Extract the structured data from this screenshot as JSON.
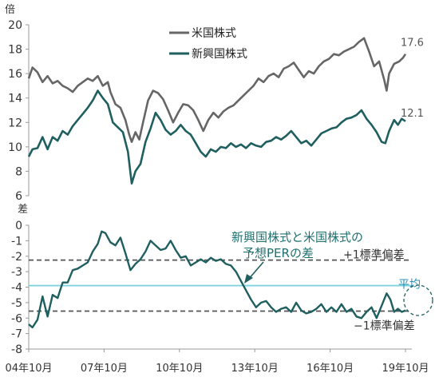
{
  "chart_data": [
    {
      "type": "line",
      "unit_label": "倍",
      "ylim": [
        6,
        20
      ],
      "yticks": [
        6,
        8,
        10,
        12,
        14,
        16,
        18,
        20
      ],
      "grid": false,
      "legend_position": "top-center",
      "series": [
        {
          "name": "米国株式",
          "color": "#666666",
          "end_label": "17.6",
          "points": [
            [
              2004.75,
              15.6
            ],
            [
              2004.9,
              16.5
            ],
            [
              2005.1,
              16.1
            ],
            [
              2005.3,
              15.3
            ],
            [
              2005.5,
              15.8
            ],
            [
              2005.7,
              15.2
            ],
            [
              2005.9,
              15.4
            ],
            [
              2006.1,
              15.0
            ],
            [
              2006.3,
              14.8
            ],
            [
              2006.5,
              14.5
            ],
            [
              2006.7,
              15.0
            ],
            [
              2006.9,
              15.3
            ],
            [
              2007.1,
              15.6
            ],
            [
              2007.3,
              15.4
            ],
            [
              2007.5,
              15.8
            ],
            [
              2007.7,
              15.0
            ],
            [
              2007.9,
              15.3
            ],
            [
              2008.0,
              14.5
            ],
            [
              2008.2,
              13.5
            ],
            [
              2008.4,
              13.2
            ],
            [
              2008.6,
              12.2
            ],
            [
              2008.75,
              11.0
            ],
            [
              2008.85,
              10.4
            ],
            [
              2009.0,
              11.2
            ],
            [
              2009.15,
              10.6
            ],
            [
              2009.3,
              12.0
            ],
            [
              2009.5,
              13.8
            ],
            [
              2009.7,
              14.6
            ],
            [
              2009.9,
              14.4
            ],
            [
              2010.1,
              13.9
            ],
            [
              2010.3,
              13.0
            ],
            [
              2010.5,
              12.0
            ],
            [
              2010.7,
              12.8
            ],
            [
              2010.9,
              13.5
            ],
            [
              2011.1,
              13.4
            ],
            [
              2011.3,
              13.0
            ],
            [
              2011.5,
              12.2
            ],
            [
              2011.7,
              11.3
            ],
            [
              2011.9,
              12.2
            ],
            [
              2012.1,
              12.8
            ],
            [
              2012.3,
              12.4
            ],
            [
              2012.5,
              12.9
            ],
            [
              2012.7,
              13.2
            ],
            [
              2012.9,
              13.4
            ],
            [
              2013.1,
              13.8
            ],
            [
              2013.3,
              14.2
            ],
            [
              2013.5,
              14.6
            ],
            [
              2013.7,
              15.0
            ],
            [
              2013.9,
              15.6
            ],
            [
              2014.1,
              15.3
            ],
            [
              2014.3,
              15.8
            ],
            [
              2014.5,
              16.0
            ],
            [
              2014.7,
              15.7
            ],
            [
              2014.9,
              16.4
            ],
            [
              2015.1,
              16.6
            ],
            [
              2015.3,
              16.9
            ],
            [
              2015.5,
              16.3
            ],
            [
              2015.7,
              15.7
            ],
            [
              2015.9,
              16.2
            ],
            [
              2016.1,
              16.0
            ],
            [
              2016.3,
              16.6
            ],
            [
              2016.5,
              17.0
            ],
            [
              2016.7,
              17.2
            ],
            [
              2016.9,
              17.6
            ],
            [
              2017.1,
              17.5
            ],
            [
              2017.3,
              17.8
            ],
            [
              2017.5,
              18.0
            ],
            [
              2017.7,
              18.2
            ],
            [
              2017.9,
              18.6
            ],
            [
              2018.1,
              18.9
            ],
            [
              2018.3,
              17.8
            ],
            [
              2018.5,
              16.6
            ],
            [
              2018.7,
              17.0
            ],
            [
              2018.9,
              15.5
            ],
            [
              2019.0,
              14.6
            ],
            [
              2019.1,
              16.0
            ],
            [
              2019.3,
              16.8
            ],
            [
              2019.5,
              17.0
            ],
            [
              2019.65,
              17.3
            ],
            [
              2019.75,
              17.6
            ]
          ]
        },
        {
          "name": "新興国株式",
          "color": "#1f5f5f",
          "end_label": "12.1",
          "points": [
            [
              2004.75,
              9.2
            ],
            [
              2004.9,
              9.8
            ],
            [
              2005.1,
              9.9
            ],
            [
              2005.3,
              10.8
            ],
            [
              2005.5,
              9.8
            ],
            [
              2005.7,
              10.8
            ],
            [
              2005.9,
              10.5
            ],
            [
              2006.1,
              11.3
            ],
            [
              2006.3,
              11.0
            ],
            [
              2006.5,
              11.7
            ],
            [
              2006.7,
              12.2
            ],
            [
              2006.9,
              12.7
            ],
            [
              2007.1,
              13.2
            ],
            [
              2007.3,
              13.8
            ],
            [
              2007.5,
              14.6
            ],
            [
              2007.7,
              14.0
            ],
            [
              2007.9,
              13.5
            ],
            [
              2008.1,
              12.0
            ],
            [
              2008.3,
              11.6
            ],
            [
              2008.5,
              11.2
            ],
            [
              2008.7,
              9.6
            ],
            [
              2008.85,
              7.0
            ],
            [
              2009.0,
              8.0
            ],
            [
              2009.2,
              8.6
            ],
            [
              2009.4,
              10.4
            ],
            [
              2009.6,
              11.5
            ],
            [
              2009.8,
              12.8
            ],
            [
              2010.0,
              12.2
            ],
            [
              2010.2,
              11.4
            ],
            [
              2010.4,
              11.0
            ],
            [
              2010.6,
              11.3
            ],
            [
              2010.8,
              11.8
            ],
            [
              2011.0,
              11.3
            ],
            [
              2011.2,
              11.0
            ],
            [
              2011.4,
              10.3
            ],
            [
              2011.6,
              9.6
            ],
            [
              2011.8,
              9.2
            ],
            [
              2012.0,
              9.8
            ],
            [
              2012.2,
              9.6
            ],
            [
              2012.4,
              10.0
            ],
            [
              2012.6,
              9.9
            ],
            [
              2012.8,
              10.3
            ],
            [
              2013.0,
              10.0
            ],
            [
              2013.2,
              10.2
            ],
            [
              2013.4,
              9.9
            ],
            [
              2013.6,
              10.3
            ],
            [
              2013.8,
              10.1
            ],
            [
              2014.0,
              10.0
            ],
            [
              2014.2,
              10.4
            ],
            [
              2014.4,
              10.5
            ],
            [
              2014.6,
              10.8
            ],
            [
              2014.8,
              10.6
            ],
            [
              2015.0,
              10.9
            ],
            [
              2015.2,
              11.3
            ],
            [
              2015.4,
              10.8
            ],
            [
              2015.6,
              10.3
            ],
            [
              2015.8,
              10.5
            ],
            [
              2016.0,
              10.1
            ],
            [
              2016.2,
              10.6
            ],
            [
              2016.4,
              11.1
            ],
            [
              2016.6,
              11.3
            ],
            [
              2016.8,
              11.5
            ],
            [
              2017.0,
              11.6
            ],
            [
              2017.2,
              12.0
            ],
            [
              2017.4,
              12.3
            ],
            [
              2017.6,
              12.4
            ],
            [
              2017.8,
              12.6
            ],
            [
              2018.0,
              13.0
            ],
            [
              2018.2,
              12.3
            ],
            [
              2018.4,
              11.8
            ],
            [
              2018.6,
              11.2
            ],
            [
              2018.8,
              10.4
            ],
            [
              2018.95,
              10.3
            ],
            [
              2019.1,
              11.3
            ],
            [
              2019.3,
              12.2
            ],
            [
              2019.45,
              11.8
            ],
            [
              2019.6,
              12.3
            ],
            [
              2019.75,
              12.1
            ]
          ]
        }
      ]
    },
    {
      "type": "line",
      "unit_label": "差",
      "ylim": [
        -8,
        0
      ],
      "yticks": [
        0,
        -1,
        -2,
        -3,
        -4,
        -5,
        -6,
        -7,
        -8
      ],
      "grid": false,
      "xlim": [
        2004.75,
        2019.75
      ],
      "xticks": [
        {
          "x": 2004.75,
          "label": "04年10月"
        },
        {
          "x": 2007.75,
          "label": "07年10月"
        },
        {
          "x": 2010.75,
          "label": "10年10月"
        },
        {
          "x": 2013.75,
          "label": "13年10月"
        },
        {
          "x": 2016.75,
          "label": "16年10月"
        },
        {
          "x": 2019.75,
          "label": "19年10月"
        }
      ],
      "series": [
        {
          "name": "新興国株式と米国株式の予想PERの差",
          "color": "#1f5f5f",
          "points": [
            [
              2004.75,
              -6.4
            ],
            [
              2004.9,
              -6.6
            ],
            [
              2005.1,
              -6.1
            ],
            [
              2005.3,
              -4.6
            ],
            [
              2005.5,
              -5.9
            ],
            [
              2005.7,
              -4.5
            ],
            [
              2005.9,
              -4.7
            ],
            [
              2006.1,
              -3.7
            ],
            [
              2006.3,
              -3.7
            ],
            [
              2006.5,
              -2.9
            ],
            [
              2006.7,
              -2.8
            ],
            [
              2006.9,
              -2.6
            ],
            [
              2007.1,
              -2.4
            ],
            [
              2007.3,
              -1.7
            ],
            [
              2007.5,
              -1.2
            ],
            [
              2007.65,
              -0.4
            ],
            [
              2007.8,
              -0.5
            ],
            [
              2008.0,
              -1.1
            ],
            [
              2008.2,
              -1.3
            ],
            [
              2008.4,
              -0.8
            ],
            [
              2008.6,
              -1.8
            ],
            [
              2008.8,
              -2.9
            ],
            [
              2009.0,
              -2.5
            ],
            [
              2009.2,
              -2.2
            ],
            [
              2009.4,
              -1.7
            ],
            [
              2009.6,
              -1.0
            ],
            [
              2009.8,
              -1.3
            ],
            [
              2010.0,
              -1.6
            ],
            [
              2010.2,
              -1.5
            ],
            [
              2010.4,
              -1.0
            ],
            [
              2010.6,
              -1.6
            ],
            [
              2010.8,
              -2.1
            ],
            [
              2011.0,
              -2.0
            ],
            [
              2011.2,
              -2.6
            ],
            [
              2011.4,
              -2.4
            ],
            [
              2011.6,
              -2.2
            ],
            [
              2011.8,
              -2.4
            ],
            [
              2012.0,
              -2.1
            ],
            [
              2012.2,
              -2.3
            ],
            [
              2012.4,
              -2.2
            ],
            [
              2012.6,
              -2.5
            ],
            [
              2012.8,
              -2.6
            ],
            [
              2013.0,
              -3.0
            ],
            [
              2013.2,
              -3.6
            ],
            [
              2013.4,
              -4.2
            ],
            [
              2013.6,
              -4.8
            ],
            [
              2013.8,
              -5.3
            ],
            [
              2014.0,
              -5.0
            ],
            [
              2014.2,
              -4.9
            ],
            [
              2014.4,
              -5.3
            ],
            [
              2014.6,
              -5.6
            ],
            [
              2014.8,
              -5.4
            ],
            [
              2015.0,
              -5.3
            ],
            [
              2015.2,
              -5.6
            ],
            [
              2015.4,
              -5.0
            ],
            [
              2015.6,
              -5.5
            ],
            [
              2015.8,
              -5.7
            ],
            [
              2016.0,
              -5.6
            ],
            [
              2016.2,
              -5.4
            ],
            [
              2016.4,
              -5.1
            ],
            [
              2016.6,
              -5.6
            ],
            [
              2016.8,
              -5.3
            ],
            [
              2017.0,
              -5.6
            ],
            [
              2017.2,
              -5.1
            ],
            [
              2017.4,
              -5.6
            ],
            [
              2017.6,
              -5.4
            ],
            [
              2017.8,
              -5.9
            ],
            [
              2018.0,
              -6.0
            ],
            [
              2018.2,
              -5.6
            ],
            [
              2018.4,
              -5.3
            ],
            [
              2018.6,
              -6.0
            ],
            [
              2018.8,
              -5.2
            ],
            [
              2019.0,
              -4.4
            ],
            [
              2019.15,
              -4.8
            ],
            [
              2019.3,
              -5.6
            ],
            [
              2019.45,
              -5.4
            ],
            [
              2019.6,
              -5.6
            ],
            [
              2019.75,
              -5.5
            ]
          ]
        }
      ],
      "reference_lines": [
        {
          "y": -2.25,
          "label": "+1標準偏差",
          "color": "#555555",
          "style": "dashed"
        },
        {
          "y": -3.9,
          "label": "平均",
          "color": "#7fd3dc",
          "style": "solid"
        },
        {
          "y": -5.55,
          "label": "−1標準偏差",
          "color": "#555555",
          "style": "dashed"
        }
      ],
      "annotations": [
        {
          "text_lines": [
            "新興国株式と米国株式の",
            "予想PERの差"
          ],
          "color": "#1f6f6f"
        }
      ]
    }
  ]
}
